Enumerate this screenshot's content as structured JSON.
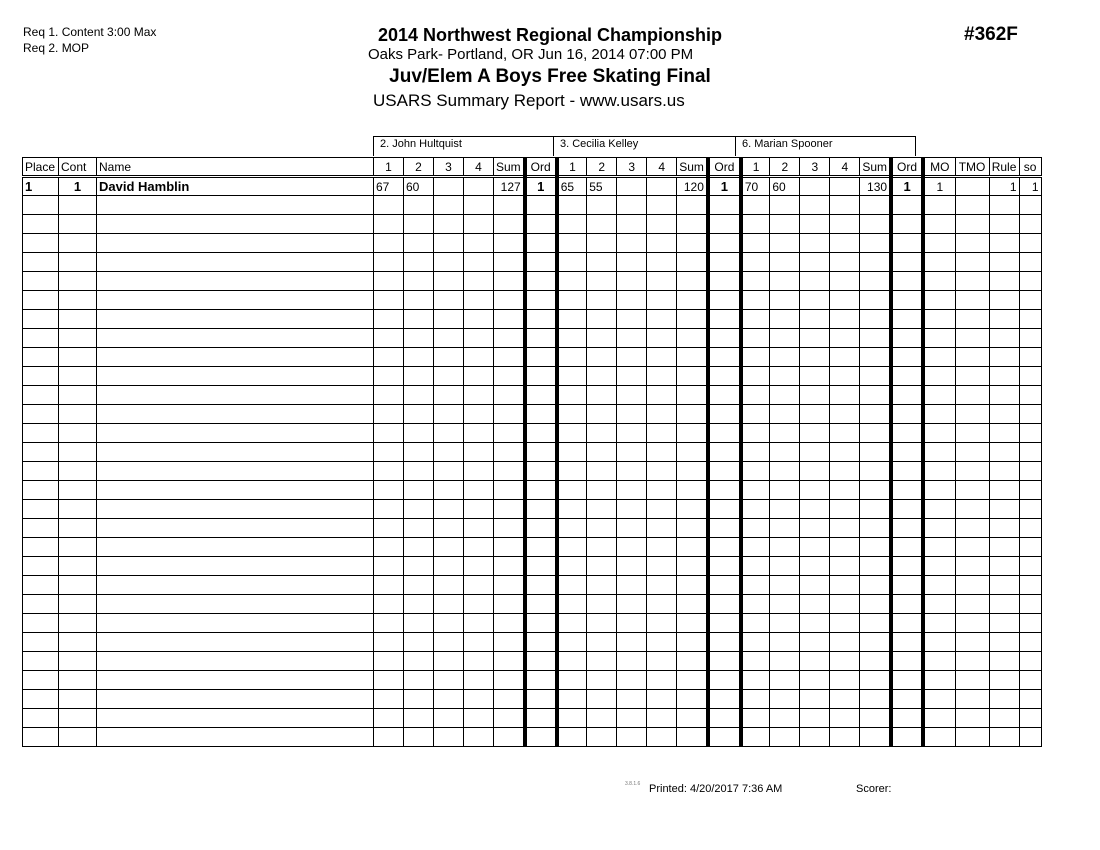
{
  "requirements": [
    "Req 1.  Content 3:00 Max",
    "Req 2.  MOP"
  ],
  "title": "2014 Northwest Regional Championship",
  "location": "Oaks Park- Portland, OR  Jun 16, 2014  07:00 PM",
  "event": "Juv/Elem A Boys Free Skating Final",
  "report": "USARS Summary Report - www.usars.us",
  "event_number": "#362F",
  "judges": [
    "2.  John Hultquist",
    "3.  Cecilia Kelley",
    "6.  Marian Spooner"
  ],
  "headers": {
    "place": "Place",
    "cont": "Cont",
    "name": "Name",
    "judge_cols": [
      "1",
      "2",
      "3",
      "4",
      "Sum",
      "Ord"
    ],
    "mo": "MO",
    "tmo": "TMO",
    "rule": "Rule",
    "so": "so"
  },
  "rows": [
    {
      "place": "1",
      "cont": "1",
      "name": "David Hamblin",
      "judges": [
        [
          "67",
          "60",
          "",
          "",
          "127",
          "1"
        ],
        [
          "65",
          "55",
          "",
          "",
          "120",
          "1"
        ],
        [
          "70",
          "60",
          "",
          "",
          "130",
          "1"
        ]
      ],
      "mo": "1",
      "tmo": "",
      "rule": "1",
      "so": "1"
    }
  ],
  "footer": {
    "version": "3.8.1.6",
    "printed": "Printed:  4/20/2017  7:36 AM",
    "scorer": "Scorer:"
  }
}
